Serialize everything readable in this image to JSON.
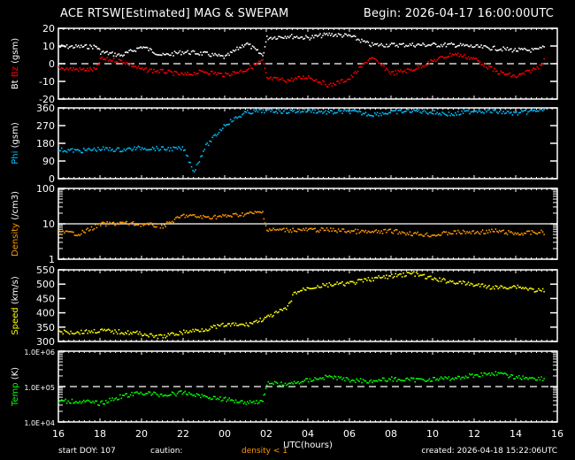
{
  "header": {
    "title": "ACE RTSW[Estimated] MAG & SWEPAM",
    "begin": "Begin: 2026-04-17 16:00:00UTC"
  },
  "footer": {
    "start_doy": "start DOY: 107",
    "caution": "caution:",
    "density_note": "density < 1",
    "created": "created: 2026-04-18 15:22:06UTC"
  },
  "colors": {
    "background": "#000000",
    "axes": "#ffffff",
    "bt": "#ffffff",
    "bz": "#ff0000",
    "phi": "#00bfff",
    "density": "#ff9900",
    "speed": "#ffff00",
    "temp": "#00ff00"
  },
  "chart_data": [
    {
      "type": "scatter",
      "panel": "mag",
      "ylabel_parts": [
        "Bt",
        "Bz",
        "(gsm)"
      ],
      "ylim": [
        -20,
        20
      ],
      "yticks": [
        "20",
        "10",
        "0",
        "-10",
        "-20"
      ],
      "reference_line": {
        "y": 0,
        "style": "dashed"
      },
      "x": [
        16,
        17,
        17.8,
        18,
        19,
        20,
        21,
        22,
        23,
        0,
        1,
        1.8,
        2,
        3,
        4,
        5,
        6,
        7,
        8,
        9,
        10,
        11,
        12,
        13,
        14,
        15,
        15.4
      ],
      "series": [
        {
          "name": "Bt",
          "color": "#ffffff",
          "values": [
            10,
            10,
            10,
            7,
            5,
            10,
            5,
            7,
            6,
            4,
            12,
            5,
            15,
            16,
            15,
            17,
            16,
            11,
            11,
            11,
            11,
            11,
            10,
            9,
            8,
            8,
            10
          ]
        },
        {
          "name": "Bz",
          "color": "#ff0000",
          "values": [
            -2,
            -3,
            -3,
            3,
            2,
            -3,
            -4,
            -6,
            -4,
            -6,
            -3,
            2,
            -8,
            -9,
            -7,
            -12,
            -8,
            4,
            -5,
            -3,
            2,
            6,
            3,
            -4,
            -7,
            -2,
            3
          ]
        }
      ]
    },
    {
      "type": "scatter",
      "panel": "phi",
      "ylabel_parts": [
        "Phi",
        "(gsm)"
      ],
      "ylim": [
        0,
        360
      ],
      "yticks": [
        "360",
        "270",
        "180",
        "90",
        "0"
      ],
      "x": [
        16,
        17,
        18,
        19,
        20,
        21,
        22,
        22.5,
        23,
        0,
        1,
        2,
        3,
        4,
        5,
        6,
        7,
        8,
        9,
        10,
        11,
        12,
        13,
        14,
        15,
        15.4
      ],
      "series": [
        {
          "name": "Phi",
          "color": "#00bfff",
          "values": [
            150,
            145,
            155,
            150,
            160,
            155,
            155,
            40,
            160,
            280,
            340,
            350,
            345,
            350,
            340,
            345,
            330,
            340,
            350,
            340,
            330,
            350,
            345,
            335,
            350,
            355
          ]
        }
      ]
    },
    {
      "type": "scatter",
      "panel": "density",
      "ylabel_parts": [
        "Density",
        "(/cm3)"
      ],
      "yscale": "log",
      "ylim": [
        1,
        100
      ],
      "yticks": [
        "100",
        "10",
        "1"
      ],
      "reference_line": {
        "y": 10,
        "style": "solid"
      },
      "x": [
        16,
        17,
        18,
        19,
        20,
        21,
        22,
        23,
        0,
        1,
        1.8,
        2,
        3,
        4,
        5,
        6,
        7,
        8,
        9,
        10,
        11,
        12,
        13,
        14,
        15,
        15.4
      ],
      "series": [
        {
          "name": "Density",
          "color": "#ff9900",
          "values": [
            6,
            5.5,
            10,
            11,
            10,
            9,
            18,
            16,
            17,
            20,
            22,
            7,
            7,
            7,
            7,
            6.5,
            6,
            6.5,
            5.5,
            5,
            6,
            6,
            6.5,
            5.5,
            6,
            6
          ]
        }
      ]
    },
    {
      "type": "scatter",
      "panel": "speed",
      "ylabel_parts": [
        "Speed",
        "(km/s)"
      ],
      "ylim": [
        300,
        550
      ],
      "yticks": [
        "550",
        "500",
        "450",
        "400",
        "350",
        "300"
      ],
      "x": [
        16,
        17,
        18,
        19,
        20,
        20.5,
        21,
        22,
        23,
        0,
        1,
        1.8,
        2,
        3,
        3.3,
        4,
        5,
        6,
        7,
        8,
        9,
        10,
        11,
        12,
        13,
        14,
        15,
        15.4
      ],
      "series": [
        {
          "name": "Speed",
          "color": "#ffff00",
          "values": [
            335,
            335,
            340,
            335,
            330,
            320,
            320,
            335,
            345,
            360,
            360,
            380,
            385,
            420,
            470,
            490,
            500,
            505,
            520,
            530,
            540,
            520,
            510,
            500,
            490,
            495,
            480,
            480
          ]
        }
      ]
    },
    {
      "type": "scatter",
      "panel": "temp",
      "ylabel_parts": [
        "Temp",
        "(K)"
      ],
      "yscale": "log",
      "ylim": [
        10000,
        1000000
      ],
      "yticks": [
        "1.0E+06",
        "1.0E+05",
        "1.0E+04"
      ],
      "reference_line": {
        "y": 100000,
        "style": "dashed"
      },
      "x": [
        16,
        17,
        18,
        19,
        20,
        21,
        22,
        23,
        0,
        1,
        1.8,
        2,
        3,
        4,
        5,
        6,
        7,
        8,
        9,
        10,
        11,
        12,
        13,
        14,
        15,
        15.4
      ],
      "series": [
        {
          "name": "Temp",
          "color": "#00ff00",
          "values": [
            40000,
            40000,
            35000,
            55000,
            70000,
            60000,
            70000,
            55000,
            45000,
            38000,
            40000,
            130000,
            120000,
            160000,
            200000,
            160000,
            150000,
            170000,
            160000,
            170000,
            180000,
            220000,
            250000,
            190000,
            180000,
            170000
          ]
        }
      ]
    }
  ],
  "xaxis": {
    "label": "UTC(hours)",
    "ticks": [
      "16",
      "18",
      "20",
      "22",
      "00",
      "02",
      "04",
      "06",
      "08",
      "10",
      "12",
      "14",
      "16"
    ]
  }
}
